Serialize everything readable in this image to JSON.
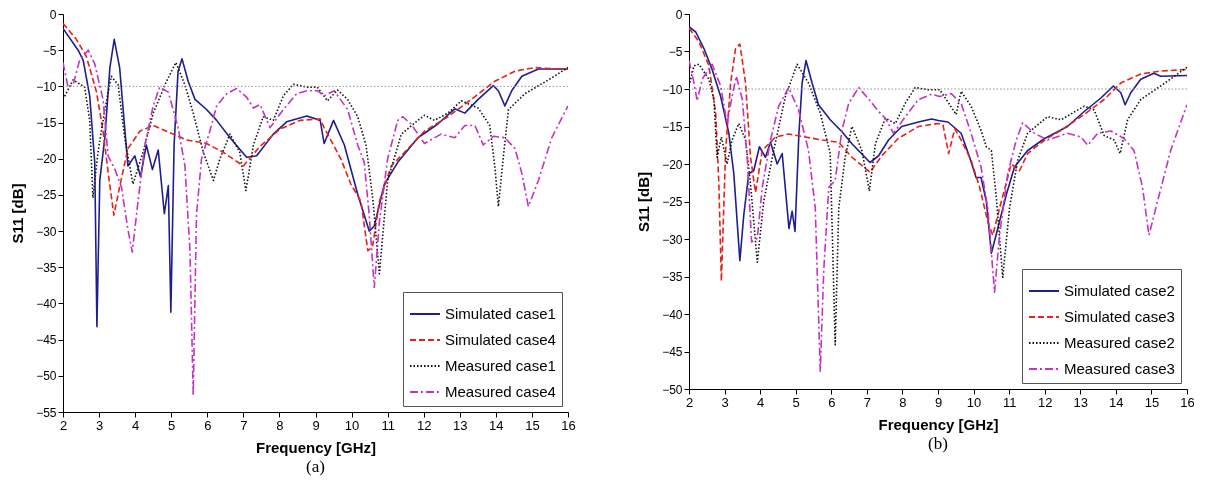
{
  "chart_data": [
    {
      "type": "line",
      "xlabel": "Frequency [GHz]",
      "ylabel": "S11 [dB]",
      "xlim": [
        2,
        16
      ],
      "ylim": [
        -55,
        0
      ],
      "xticks": [
        2,
        3,
        4,
        5,
        6,
        7,
        8,
        9,
        10,
        11,
        12,
        13,
        14,
        15,
        16
      ],
      "yticks": [
        0,
        -5,
        -10,
        -15,
        -20,
        -25,
        -30,
        -35,
        -40,
        -45,
        -50,
        -55
      ],
      "legend": "bottom right",
      "annotations": [
        "(a)"
      ],
      "ref_lines": [
        {
          "axis": "y",
          "value": -10,
          "color": "#888888",
          "line_style": "dotted"
        }
      ],
      "series": [
        {
          "name": "Simulated case1",
          "color": "#1f1f8c",
          "line_style": "solid",
          "x": [
            2,
            2.42,
            2.56,
            2.74,
            2.88,
            2.94,
            3.02,
            3.16,
            3.3,
            3.42,
            3.57,
            3.71,
            3.8,
            3.99,
            4.15,
            4.31,
            4.48,
            4.64,
            4.81,
            4.92,
            4.99,
            5.08,
            5.19,
            5.3,
            5.47,
            5.66,
            5.98,
            6.26,
            6.63,
            7.09,
            7.37,
            7.83,
            8.2,
            8.76,
            9.13,
            9.24,
            9.5,
            9.8,
            10.17,
            10.49,
            10.63,
            10.91,
            11.28,
            11.84,
            12.39,
            12.86,
            13.14,
            13.51,
            13.93,
            14.07,
            14.25,
            14.44,
            14.72,
            15.18,
            16
          ],
          "values": [
            -2,
            -5,
            -6.4,
            -11.3,
            -20.5,
            -43.2,
            -23,
            -17.1,
            -7.4,
            -3.5,
            -7.4,
            -15.7,
            -21,
            -19.6,
            -22.5,
            -18.1,
            -21.5,
            -18.8,
            -27.6,
            -23.7,
            -41.2,
            -18.1,
            -7.9,
            -6.2,
            -9.3,
            -11.8,
            -13.2,
            -14.7,
            -17.1,
            -19.8,
            -19.6,
            -16.6,
            -14.9,
            -14.1,
            -14.7,
            -17.9,
            -14.7,
            -18.1,
            -24.9,
            -30,
            -29.3,
            -23.5,
            -20.5,
            -17.1,
            -15.2,
            -13.1,
            -13.7,
            -11.8,
            -9.9,
            -10.6,
            -12.7,
            -10.6,
            -8.6,
            -7.6,
            -7.6
          ]
        },
        {
          "name": "Simulated case4",
          "color": "#e8201a",
          "line_style": "dashed",
          "x": [
            2,
            2.37,
            2.65,
            2.93,
            3.11,
            3.28,
            3.41,
            3.57,
            3.8,
            4.13,
            4.5,
            4.96,
            5.43,
            5.98,
            6.44,
            7,
            7.46,
            8.02,
            8.57,
            9.13,
            9.24,
            9.7,
            9.98,
            10.26,
            10.45,
            10.58,
            10.77,
            11.1,
            11.47,
            12.02,
            12.67,
            13.32,
            13.97,
            14.53,
            15.09,
            15.65,
            16
          ],
          "values": [
            -1.3,
            -3.5,
            -5.9,
            -10.8,
            -16.2,
            -23,
            -27.8,
            -23.9,
            -18.6,
            -16.2,
            -15.4,
            -16.4,
            -17.4,
            -17.9,
            -19.1,
            -21,
            -18.3,
            -15.9,
            -14.7,
            -14.5,
            -15.7,
            -20,
            -23.5,
            -25.9,
            -32.7,
            -32.2,
            -25.9,
            -21,
            -19.1,
            -16.2,
            -14.2,
            -11.8,
            -9.3,
            -7.9,
            -7.4,
            -7.6,
            -7.6
          ]
        },
        {
          "name": "Measured case1",
          "color": "#111111",
          "line_style": "dotted",
          "x": [
            2,
            2.28,
            2.6,
            2.74,
            2.83,
            2.97,
            3.16,
            3.34,
            3.53,
            3.71,
            3.94,
            4.22,
            4.5,
            4.87,
            5.13,
            5.38,
            5.61,
            5.89,
            6.17,
            6.35,
            6.63,
            6.9,
            7.07,
            7.28,
            7.55,
            7.83,
            8.11,
            8.39,
            8.76,
            9.05,
            9.33,
            9.61,
            9.89,
            10.17,
            10.4,
            10.59,
            10.77,
            11,
            11.38,
            11.84,
            12.02,
            12.3,
            12.67,
            13.04,
            13.51,
            13.83,
            13.97,
            14.07,
            14.21,
            14.35,
            14.81,
            15.46,
            16
          ],
          "values": [
            -11.8,
            -9.1,
            -10.1,
            -14.7,
            -25.4,
            -19.1,
            -13.2,
            -8.6,
            -9.8,
            -17.1,
            -23.5,
            -19.1,
            -13.7,
            -9.3,
            -6.7,
            -9.8,
            -13.7,
            -19.1,
            -23,
            -20,
            -16.6,
            -19.1,
            -24.4,
            -18.1,
            -14.2,
            -14.7,
            -11.3,
            -9.7,
            -10.1,
            -10.1,
            -12,
            -10.5,
            -11.8,
            -14.2,
            -18.1,
            -25.6,
            -35.9,
            -23,
            -16.6,
            -14.7,
            -14,
            -14.7,
            -13.7,
            -12,
            -13,
            -15.4,
            -21,
            -26.6,
            -19.6,
            -13.2,
            -11,
            -9.1,
            -7.4
          ]
        },
        {
          "name": "Measured case4",
          "color": "#c433c4",
          "line_style": "dashdot",
          "x": [
            2,
            2.14,
            2.28,
            2.46,
            2.7,
            2.88,
            3.11,
            3.25,
            3.44,
            3.62,
            3.8,
            3.92,
            4.08,
            4.27,
            4.5,
            4.68,
            4.92,
            5.19,
            5.38,
            5.52,
            5.61,
            5.7,
            5.84,
            6.07,
            6.26,
            6.54,
            6.81,
            7.09,
            7.28,
            7.46,
            7.74,
            8.11,
            8.48,
            8.76,
            9.05,
            9.24,
            9.52,
            9.89,
            10.17,
            10.35,
            10.49,
            10.63,
            10.77,
            11,
            11.28,
            11.42,
            11.65,
            12.02,
            12.48,
            12.86,
            13.14,
            13.42,
            13.65,
            13.93,
            14.25,
            14.53,
            14.72,
            14.9,
            15.18,
            15.55,
            16
          ],
          "values": [
            -6.7,
            -10.1,
            -9.8,
            -6.4,
            -5,
            -6.9,
            -11.8,
            -19.6,
            -21.5,
            -23.9,
            -29.8,
            -32.9,
            -25.9,
            -18.1,
            -12.7,
            -10.1,
            -10.8,
            -15.7,
            -21,
            -32.7,
            -52.7,
            -27.8,
            -20,
            -16.2,
            -12.7,
            -11,
            -10.3,
            -11.5,
            -13,
            -12.5,
            -15.7,
            -13.2,
            -11,
            -10.6,
            -10.6,
            -11.3,
            -10.6,
            -13.2,
            -18.1,
            -20.5,
            -27.8,
            -37.8,
            -28.8,
            -20,
            -14.7,
            -14.2,
            -15.2,
            -17.9,
            -16.6,
            -17.1,
            -15.4,
            -15.4,
            -18.1,
            -16.9,
            -17.1,
            -18.6,
            -22,
            -26.6,
            -23,
            -17.1,
            -12.7
          ]
        }
      ]
    },
    {
      "type": "line",
      "xlabel": "Frequency [GHz]",
      "ylabel": "S11 [dB]",
      "xlim": [
        2,
        16
      ],
      "ylim": [
        -50,
        0
      ],
      "xticks": [
        2,
        3,
        4,
        5,
        6,
        7,
        8,
        9,
        10,
        11,
        12,
        13,
        14,
        15,
        16
      ],
      "yticks": [
        0,
        -5,
        -10,
        -15,
        -20,
        -25,
        -30,
        -35,
        -40,
        -45,
        -50
      ],
      "legend": "bottom right",
      "annotations": [
        "(b)"
      ],
      "ref_lines": [
        {
          "axis": "y",
          "value": -10,
          "color": "#888888",
          "line_style": "dotted"
        }
      ],
      "series": [
        {
          "name": "Simulated case2",
          "color": "#1f1f8c",
          "line_style": "solid",
          "x": [
            2,
            2.19,
            2.42,
            2.65,
            2.89,
            3.12,
            3.26,
            3.43,
            3.54,
            3.68,
            3.82,
            3.98,
            4.15,
            4.29,
            4.48,
            4.62,
            4.81,
            4.9,
            4.98,
            5.09,
            5.18,
            5.29,
            5.46,
            5.64,
            5.97,
            6.3,
            6.58,
            7.09,
            7.33,
            7.61,
            7.98,
            8.45,
            8.82,
            9.01,
            9.28,
            9.65,
            9.89,
            10.07,
            10.21,
            10.36,
            10.5,
            10.68,
            10.92,
            11.15,
            11.52,
            12,
            12.64,
            13.11,
            13.58,
            13.93,
            14.14,
            14.26,
            14.42,
            14.7,
            15.07,
            15.26,
            16
          ],
          "values": [
            -1.7,
            -2.4,
            -4.6,
            -7.4,
            -11,
            -15.9,
            -21.3,
            -32.9,
            -26.8,
            -21.3,
            -20.9,
            -17.7,
            -19.1,
            -17.1,
            -20,
            -18.6,
            -28.6,
            -26.3,
            -29,
            -15.9,
            -9.2,
            -6.2,
            -9.2,
            -12.1,
            -14.1,
            -15.7,
            -17.3,
            -19.8,
            -18.9,
            -16.8,
            -15,
            -14.4,
            -14,
            -14.2,
            -14.4,
            -15.9,
            -19.1,
            -21.8,
            -21.8,
            -25,
            -31.9,
            -28.6,
            -24.1,
            -20.4,
            -18.2,
            -16.6,
            -15,
            -13,
            -11.2,
            -9.6,
            -10.5,
            -12.1,
            -10.5,
            -8.7,
            -7.9,
            -8.3,
            -8.2
          ]
        },
        {
          "name": "Simulated case3",
          "color": "#e8201a",
          "line_style": "dashed",
          "x": [
            2,
            2.28,
            2.56,
            2.75,
            2.84,
            2.91,
            3.03,
            3.17,
            3.31,
            3.43,
            3.59,
            3.73,
            3.87,
            4.06,
            4.43,
            4.8,
            5.27,
            5.74,
            6.21,
            6.58,
            7.09,
            7.42,
            7.88,
            8.45,
            9,
            9.14,
            9.3,
            9.47,
            9.65,
            9.93,
            10.17,
            10.4,
            10.54,
            10.73,
            11.06,
            11.29,
            11.52,
            12,
            12.46,
            13.11,
            13.67,
            14.14,
            14.7,
            15.26,
            16
          ],
          "values": [
            -1.9,
            -3.7,
            -6.9,
            -13.2,
            -22.7,
            -35.6,
            -18.2,
            -9.2,
            -4.6,
            -4,
            -9.2,
            -19.1,
            -23.8,
            -18.2,
            -16.4,
            -16,
            -16.4,
            -16.8,
            -17.1,
            -19.1,
            -21.1,
            -18.9,
            -16.6,
            -15,
            -14.6,
            -14.8,
            -18.6,
            -15.3,
            -16.8,
            -19.5,
            -23.1,
            -27.7,
            -29.5,
            -25.9,
            -20,
            -20.9,
            -18.6,
            -16.8,
            -15.5,
            -13.4,
            -11.4,
            -9.2,
            -8,
            -7.6,
            -7.4
          ]
        },
        {
          "name": "Measured case2",
          "color": "#111111",
          "line_style": "dotted",
          "x": [
            2,
            2.14,
            2.28,
            2.56,
            2.7,
            2.79,
            2.91,
            3.07,
            3.21,
            3.4,
            3.59,
            3.73,
            3.92,
            4.1,
            4.38,
            4.71,
            5.04,
            5.36,
            5.69,
            5.97,
            6.11,
            6.21,
            6.39,
            6.58,
            6.86,
            7.07,
            7.24,
            7.52,
            7.8,
            8.08,
            8.36,
            8.73,
            9.05,
            9.51,
            9.65,
            9.93,
            10.21,
            10.36,
            10.5,
            10.64,
            10.82,
            11.01,
            11.24,
            11.52,
            12.08,
            12.46,
            13.11,
            13.39,
            13.67,
            13.95,
            14.12,
            14.33,
            14.7,
            15.26,
            16
          ],
          "values": [
            -9.6,
            -6.9,
            -6.7,
            -8.7,
            -11.4,
            -19.1,
            -16.4,
            -20,
            -16.8,
            -14.6,
            -16.8,
            -22.7,
            -33.1,
            -25,
            -18.2,
            -11,
            -6.7,
            -9.2,
            -13.2,
            -18.6,
            -44.1,
            -25.9,
            -19.1,
            -15,
            -18.2,
            -23.6,
            -17.3,
            -13.9,
            -14.6,
            -11.9,
            -9.8,
            -10.1,
            -10.1,
            -13.4,
            -10.3,
            -12.3,
            -15.5,
            -17.7,
            -18.2,
            -24.5,
            -35.1,
            -25.9,
            -19.5,
            -15.9,
            -13.7,
            -14.1,
            -12.3,
            -12.8,
            -16.2,
            -16.8,
            -18.6,
            -14.1,
            -11.4,
            -9.6,
            -7.1
          ]
        },
        {
          "name": "Measured case3",
          "color": "#c433c4",
          "line_style": "dashdot",
          "x": [
            2,
            2.14,
            2.23,
            2.37,
            2.65,
            2.89,
            3.07,
            3.21,
            3.33,
            3.5,
            3.64,
            3.76,
            3.92,
            4.06,
            4.29,
            4.52,
            4.8,
            5.08,
            5.36,
            5.55,
            5.69,
            5.79,
            5.93,
            6.11,
            6.3,
            6.49,
            6.77,
            7.06,
            7.33,
            7.52,
            7.75,
            8.08,
            8.45,
            8.82,
            9.05,
            9.37,
            9.65,
            9.93,
            10.21,
            10.4,
            10.59,
            10.73,
            10.96,
            11.2,
            11.38,
            11.71,
            12.08,
            12.64,
            13.02,
            13.21,
            13.49,
            13.86,
            14.23,
            14.51,
            14.75,
            14.93,
            15.17,
            15.54,
            16
          ],
          "values": [
            -6.2,
            -9.2,
            -11.6,
            -8.7,
            -6.7,
            -9.6,
            -14.6,
            -11,
            -8.3,
            -11.4,
            -19.5,
            -30.4,
            -29.9,
            -23.1,
            -16.8,
            -12.3,
            -9.8,
            -12.8,
            -18.2,
            -25.9,
            -47.7,
            -34,
            -23.1,
            -22.2,
            -15.5,
            -11.9,
            -9.8,
            -11.4,
            -13,
            -13.9,
            -15.9,
            -13.7,
            -11.4,
            -10.7,
            -11,
            -10.6,
            -11.9,
            -15.9,
            -20.4,
            -25.9,
            -37.1,
            -29.5,
            -21.3,
            -16.8,
            -14.5,
            -15.9,
            -16.8,
            -15.9,
            -16.4,
            -17.5,
            -15.9,
            -15.6,
            -16.6,
            -18.2,
            -23.1,
            -29.5,
            -25,
            -18.2,
            -12.1
          ]
        }
      ]
    }
  ]
}
